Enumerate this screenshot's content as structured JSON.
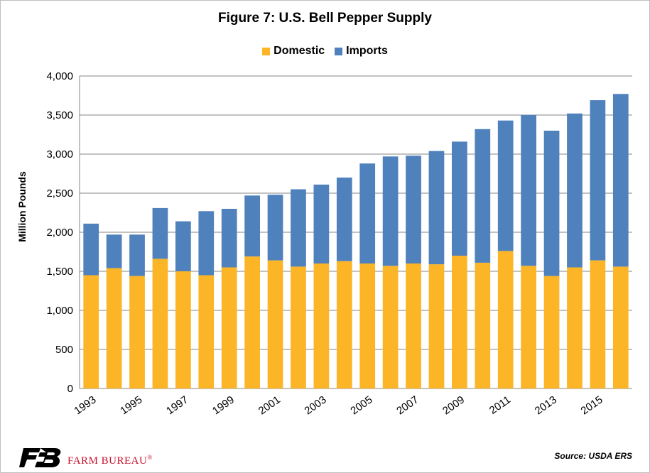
{
  "chart_data": {
    "type": "bar",
    "stacked": true,
    "title": "Figure 7: U.S. Bell Pepper Supply",
    "ylabel": "Million Pounds",
    "ylim": [
      0,
      4000
    ],
    "yticks": [
      0,
      500,
      1000,
      1500,
      2000,
      2500,
      3000,
      3500,
      4000
    ],
    "ytick_labels": [
      "0",
      "500",
      "1,000",
      "1,500",
      "2,000",
      "2,500",
      "3,000",
      "3,500",
      "4,000"
    ],
    "grid": "horizontal",
    "legend": "top-center",
    "categories": [
      "1993",
      "1994",
      "1995",
      "1996",
      "1997",
      "1998",
      "1999",
      "2000",
      "2001",
      "2002",
      "2003",
      "2004",
      "2005",
      "2006",
      "2007",
      "2008",
      "2009",
      "2010",
      "2011",
      "2012",
      "2013",
      "2014",
      "2015",
      "2016"
    ],
    "xtick_labels_shown": [
      "1993",
      "1995",
      "1997",
      "1999",
      "2001",
      "2003",
      "2005",
      "2007",
      "2009",
      "2011",
      "2013",
      "2015"
    ],
    "series": [
      {
        "name": "Domestic",
        "color": "#FCB526",
        "values": [
          1450,
          1540,
          1440,
          1660,
          1500,
          1450,
          1550,
          1690,
          1640,
          1560,
          1600,
          1630,
          1600,
          1570,
          1600,
          1590,
          1700,
          1610,
          1760,
          1570,
          1440,
          1550,
          1640,
          1560
        ]
      },
      {
        "name": "Imports",
        "color": "#4F81BD",
        "values": [
          660,
          430,
          530,
          650,
          640,
          820,
          750,
          780,
          840,
          990,
          1010,
          1070,
          1280,
          1400,
          1380,
          1450,
          1460,
          1710,
          1670,
          1930,
          1860,
          1970,
          2050,
          2210
        ]
      }
    ]
  },
  "source": "Source: USDA ERS",
  "logo": {
    "icon": "farm-bureau-fb-logo",
    "name": "FARM BUREAU",
    "mark": "®"
  }
}
